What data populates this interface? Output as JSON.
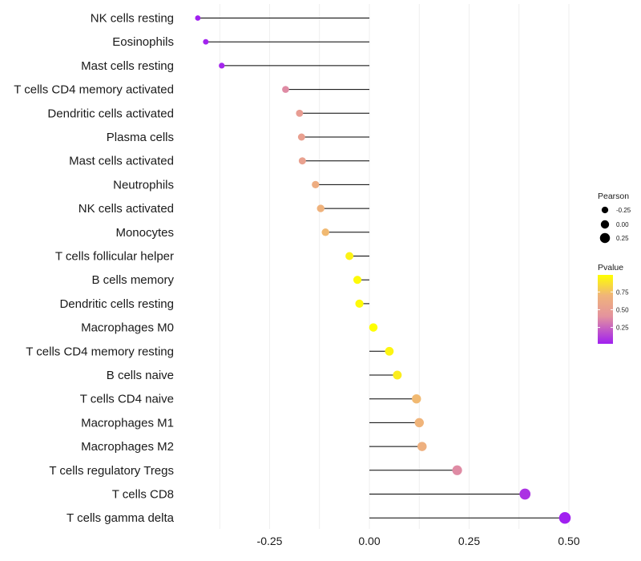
{
  "chart_data": {
    "type": "lollipop",
    "title": "",
    "xlabel": "",
    "ylabel": "",
    "xlim": [
      -0.43,
      0.5
    ],
    "x_ticks": [
      -0.25,
      0.0,
      0.25,
      0.5
    ],
    "x_tick_labels": [
      "-0.25",
      "0.00",
      "0.25",
      "0.50"
    ],
    "grid": true,
    "categories": [
      "NK cells resting",
      "Eosinophils",
      "Mast cells resting",
      "T cells CD4 memory activated",
      "Dendritic cells activated",
      "Plasma cells",
      "Mast cells activated",
      "Neutrophils",
      "NK cells activated",
      "Monocytes",
      "T cells follicular helper",
      "B cells memory",
      "Dendritic cells resting",
      "Macrophages M0",
      "T cells CD4 memory resting",
      "B cells naive",
      "T cells CD4 naive",
      "Macrophages M1",
      "Macrophages M2",
      "T cells regulatory  Tregs ",
      "T cells CD8",
      "T cells gamma delta"
    ],
    "pearson": [
      -0.43,
      -0.41,
      -0.37,
      -0.21,
      -0.175,
      -0.17,
      -0.168,
      -0.135,
      -0.122,
      -0.11,
      -0.05,
      -0.03,
      -0.025,
      0.01,
      0.05,
      0.07,
      0.118,
      0.125,
      0.132,
      0.22,
      0.39,
      0.49
    ],
    "pvalue": [
      0.02,
      0.03,
      0.04,
      0.38,
      0.5,
      0.52,
      0.53,
      0.64,
      0.68,
      0.72,
      0.94,
      0.97,
      0.97,
      0.99,
      0.95,
      0.92,
      0.72,
      0.7,
      0.66,
      0.38,
      0.08,
      0.02
    ],
    "legend": {
      "size_title": "Pearson",
      "size_labels": [
        "-0.25",
        "0.00",
        "0.25"
      ],
      "size_values": [
        -0.25,
        0.0,
        0.25
      ],
      "color_title": "Pvalue",
      "color_labels": [
        "0.75",
        "0.50",
        "0.25"
      ],
      "color_values": [
        0.75,
        0.5,
        0.25
      ],
      "color_range": [
        0.02,
        0.99
      ],
      "placement": "right"
    },
    "colors": {
      "low": "#a020f0",
      "mid": "#e4939e",
      "mid2": "#f0b47a",
      "high": "#ffff00",
      "stem": "#000000",
      "grid": "#ebebeb"
    }
  }
}
